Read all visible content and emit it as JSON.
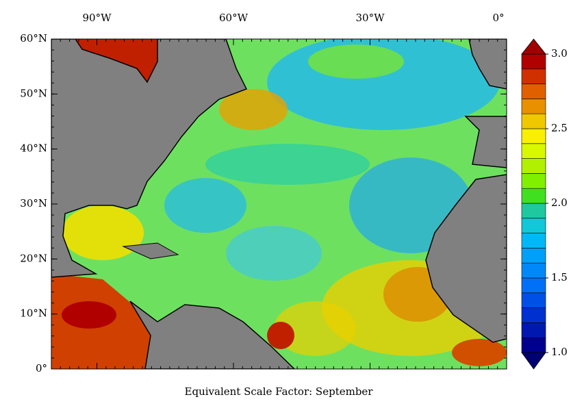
{
  "map": {
    "title": "Equivalent Scale Factor: September",
    "lonlim": [
      -100,
      0
    ],
    "latlim": [
      0,
      60
    ],
    "lon_ticks": [
      {
        "value": -90,
        "label": "90°W"
      },
      {
        "value": -60,
        "label": "60°W"
      },
      {
        "value": -30,
        "label": "30°W"
      },
      {
        "value": 0,
        "label": "0°"
      }
    ],
    "lat_ticks": [
      {
        "value": 0,
        "label": "0°"
      },
      {
        "value": 10,
        "label": "10°N"
      },
      {
        "value": 20,
        "label": "20°N"
      },
      {
        "value": 30,
        "label": "30°N"
      },
      {
        "value": 40,
        "label": "40°N"
      },
      {
        "value": 50,
        "label": "50°N"
      },
      {
        "value": 60,
        "label": "60°N"
      }
    ],
    "colorbar": {
      "lim": [
        1,
        3
      ],
      "ticks": [
        {
          "value": 1,
          "label": "1.0"
        },
        1.5,
        {
          "value": 2,
          "label": "2.0"
        },
        2.5,
        {
          "value": 3,
          "label": "3.0"
        }
      ],
      "colors": [
        "#000090",
        "#0018b0",
        "#0030d0",
        "#0050e8",
        "#0070f8",
        "#0088f8",
        "#00a0f8",
        "#00b8f8",
        "#10c8d8",
        "#20c8a0",
        "#40e020",
        "#80f000",
        "#b0f000",
        "#d8f800",
        "#f8f000",
        "#f0c800",
        "#e89000",
        "#e06000",
        "#d03000",
        "#b00000"
      ],
      "under_color": "#000070",
      "over_color": "#a00000"
    }
  }
}
